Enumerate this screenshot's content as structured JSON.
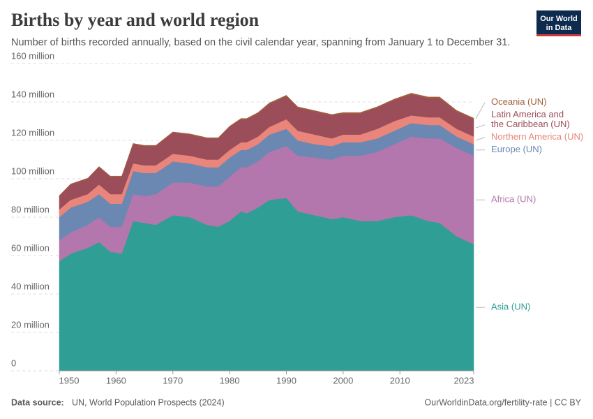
{
  "chart_data": {
    "type": "stacked-area",
    "title": "Births by year and world region",
    "subtitle": "Number of births recorded annually, based on the civil calendar year, spanning from January 1 to December 31.",
    "source_label": "Data source:",
    "source": "UN, World Population Prospects (2024)",
    "footer": "OurWorldinData.org/fertility-rate | CC BY",
    "logo": [
      "Our World",
      "in Data"
    ],
    "x": [
      1950,
      1952,
      1955,
      1957,
      1959,
      1961,
      1963,
      1965,
      1967,
      1970,
      1973,
      1976,
      1978,
      1980,
      1982,
      1983,
      1985,
      1987,
      1990,
      1992,
      1995,
      1998,
      2000,
      2003,
      2006,
      2009,
      2012,
      2015,
      2017,
      2020,
      2023
    ],
    "xlim": [
      1950,
      2023
    ],
    "xticks": [
      1950,
      1960,
      1970,
      1980,
      1990,
      2000,
      2010,
      2023
    ],
    "ylim": [
      0,
      160000000
    ],
    "yticks": [
      {
        "value": 0,
        "label": "0"
      },
      {
        "value": 20000000,
        "label": "20 million"
      },
      {
        "value": 40000000,
        "label": "40 million"
      },
      {
        "value": 60000000,
        "label": "60 million"
      },
      {
        "value": 80000000,
        "label": "80 million"
      },
      {
        "value": 100000000,
        "label": "100 million"
      },
      {
        "value": 120000000,
        "label": "120 million"
      },
      {
        "value": 140000000,
        "label": "140 million"
      },
      {
        "value": 160000000,
        "label": "160 million"
      }
    ],
    "grid": true,
    "series": [
      {
        "name": "Asia (UN)",
        "color": "#2f9e94",
        "values": [
          57000000,
          61000000,
          64000000,
          67000000,
          62000000,
          61000000,
          78000000,
          77000000,
          76000000,
          81000000,
          80000000,
          76000000,
          75000000,
          78000000,
          83000000,
          82000000,
          85000000,
          89000000,
          90000000,
          83000000,
          81000000,
          79000000,
          80000000,
          78000000,
          78000000,
          80000000,
          81000000,
          78000000,
          77000000,
          70000000,
          66000000
        ]
      },
      {
        "name": "Africa (UN)",
        "color": "#b376ad",
        "values": [
          11000000,
          11000000,
          12000000,
          13000000,
          13000000,
          14000000,
          14000000,
          14000000,
          16000000,
          17000000,
          18000000,
          20000000,
          21000000,
          23000000,
          23000000,
          24000000,
          24000000,
          25000000,
          27000000,
          29000000,
          30000000,
          31000000,
          32000000,
          34000000,
          36000000,
          38000000,
          41000000,
          43000000,
          44000000,
          46000000,
          46000000
        ]
      },
      {
        "name": "Europe (UN)",
        "color": "#6b88b3",
        "values": [
          12000000,
          13000000,
          12000000,
          12000000,
          12000000,
          12000000,
          12000000,
          12000000,
          11000000,
          11000000,
          10000000,
          10000000,
          10000000,
          10000000,
          9000000,
          9000000,
          9000000,
          9000000,
          9000000,
          8000000,
          7000000,
          7000000,
          7000000,
          7000000,
          7000000,
          7000000,
          7000000,
          7000000,
          7000000,
          6000000,
          6000000
        ]
      },
      {
        "name": "Northern America (UN)",
        "color": "#e9857a",
        "values": [
          4000000,
          4000000,
          4000000,
          5000000,
          5000000,
          5000000,
          4000000,
          4000000,
          4000000,
          4000000,
          4000000,
          4000000,
          4000000,
          4000000,
          4000000,
          4000000,
          4000000,
          4000000,
          5000000,
          5000000,
          5000000,
          4000000,
          4000000,
          4000000,
          5000000,
          5000000,
          4000000,
          4000000,
          4000000,
          4000000,
          4000000
        ]
      },
      {
        "name": "Latin America and the Caribbean (UN)",
        "color": "#9b4d5a",
        "values": [
          7000000,
          8000000,
          8000000,
          9000000,
          9000000,
          9000000,
          10000000,
          10000000,
          10000000,
          11000000,
          11000000,
          11000000,
          11000000,
          12000000,
          12000000,
          12000000,
          12000000,
          12000000,
          12000000,
          12000000,
          12000000,
          12000000,
          11000000,
          11000000,
          11000000,
          11000000,
          11000000,
          10000000,
          10000000,
          9000000,
          9000000
        ]
      },
      {
        "name": "Oceania (UN)",
        "color": "#a2603c",
        "values": [
          300000,
          300000,
          300000,
          400000,
          400000,
          400000,
          400000,
          400000,
          400000,
          400000,
          400000,
          400000,
          400000,
          400000,
          400000,
          400000,
          500000,
          500000,
          500000,
          500000,
          500000,
          500000,
          500000,
          500000,
          500000,
          500000,
          600000,
          600000,
          600000,
          600000,
          600000
        ]
      }
    ]
  }
}
